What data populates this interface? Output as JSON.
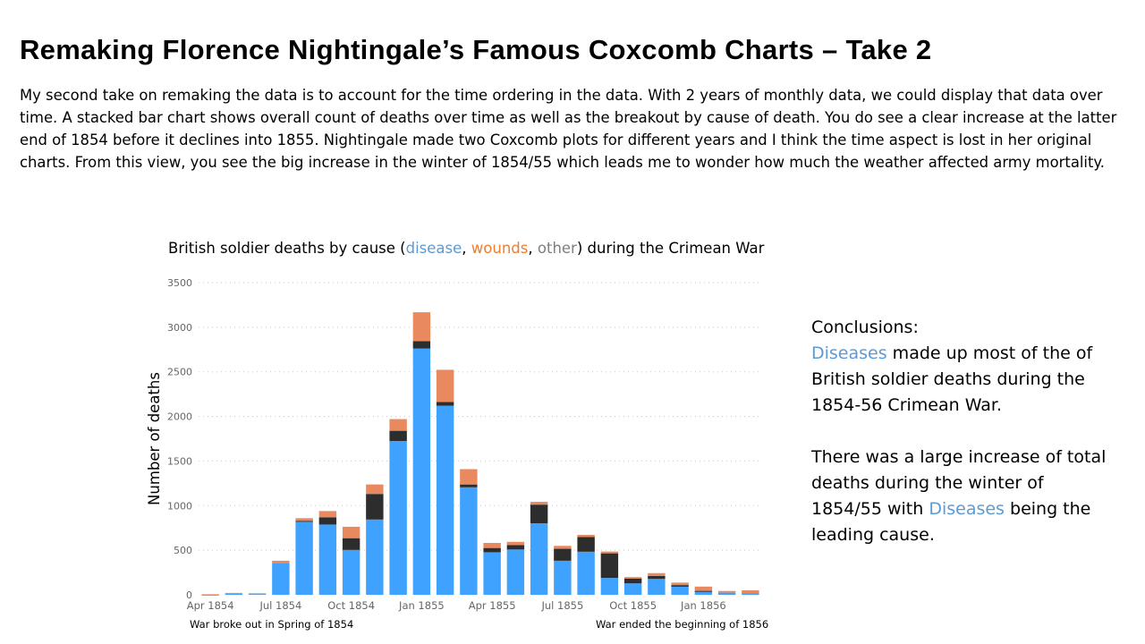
{
  "title": "Remaking Florence Nightingale’s Famous Coxcomb Charts – Take 2",
  "intro": "My second take on remaking the data is to account for the time ordering in the data. With 2 years of monthly data, we could display that data over time. A stacked bar chart shows overall count of deaths over time as well as the breakout by cause of death. You do see a clear increase at the latter end of 1854 before it declines into 1855. Nightingale made two Coxcomb plots for different years and I think the time aspect is lost in her original charts. From this view, you see the big increase in the winter of 1854/55 which leads me to wonder how much the weather affected army mortality.",
  "chart_title": {
    "prefix": "British soldier deaths by cause (",
    "disease": "disease",
    "sep1": ", ",
    "wounds": "wounds",
    "sep2": ", ",
    "other": "other",
    "suffix": ") during the Crimean War"
  },
  "chart_data": {
    "type": "bar",
    "stacked": true,
    "ylabel": "Number of deaths",
    "xlabel": "",
    "ylim": [
      0,
      3500
    ],
    "yticks": [
      0,
      500,
      1000,
      1500,
      2000,
      2500,
      3000,
      3500
    ],
    "grid": true,
    "categories": [
      "Apr 1854",
      "May 1854",
      "Jun 1854",
      "Jul 1854",
      "Aug 1854",
      "Sep 1854",
      "Oct 1854",
      "Nov 1854",
      "Dec 1854",
      "Jan 1855",
      "Feb 1855",
      "Mar 1855",
      "Apr 1855",
      "May 1855",
      "Jun 1855",
      "Jul 1855",
      "Aug 1855",
      "Sep 1855",
      "Oct 1855",
      "Nov 1855",
      "Dec 1855",
      "Jan 1856",
      "Feb 1856",
      "Mar 1856"
    ],
    "xtick_labels": [
      "Apr 1854",
      "Jul 1854",
      "Oct 1854",
      "Jan 1855",
      "Apr 1855",
      "Jul 1855",
      "Oct 1855",
      "Jan 1856"
    ],
    "series": [
      {
        "name": "disease",
        "color": "#3fa2ff",
        "values": [
          1,
          12,
          11,
          359,
          828,
          788,
          503,
          844,
          1725,
          2761,
          2120,
          1205,
          477,
          508,
          802,
          382,
          483,
          189,
          128,
          178,
          91,
          42,
          24,
          15
        ]
      },
      {
        "name": "wounds",
        "color": "#2d2d2d",
        "values": [
          0,
          0,
          0,
          0,
          1,
          81,
          132,
          287,
          114,
          83,
          42,
          32,
          48,
          49,
          209,
          134,
          164,
          276,
          53,
          33,
          18,
          2,
          0,
          0
        ]
      },
      {
        "name": "other",
        "color": "#e8895f",
        "values": [
          5,
          9,
          6,
          23,
          30,
          70,
          128,
          106,
          131,
          324,
          361,
          172,
          57,
          37,
          31,
          33,
          25,
          20,
          18,
          32,
          28,
          48,
          19,
          35
        ]
      }
    ]
  },
  "footnotes": {
    "left": "War broke out in Spring of 1854",
    "right": "War ended the beginning  of 1856"
  },
  "conclusions": {
    "heading": "Conclusions:",
    "p1_accent": "Diseases",
    "p1_rest": " made up most of the of British soldier deaths during the 1854-56 Crimean War.",
    "p2_start": "There was a large increase of total deaths during the winter of 1854/55 with ",
    "p2_accent": "Diseases",
    "p2_end": " being the leading cause."
  }
}
